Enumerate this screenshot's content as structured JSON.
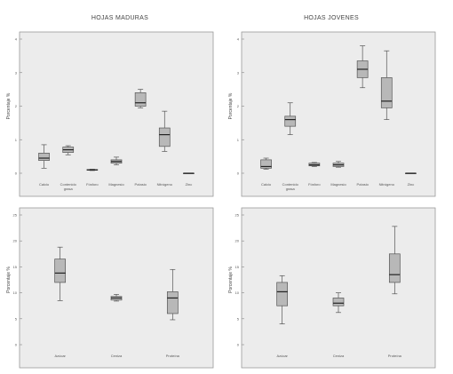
{
  "chart_data": [
    {
      "type": "boxplot",
      "title": "HOJAS MADURAS",
      "ylabel": "Porcentaje %",
      "ylim": [
        0,
        4
      ],
      "yticks": [
        0,
        1,
        2,
        3,
        4
      ],
      "color": "#b8b8b8",
      "categories": [
        "Calcio",
        "Contenido\ngrasa",
        "Fósforo",
        "Magnesio",
        "Potasio",
        "Nitrógeno",
        "Zinc"
      ],
      "boxes": [
        {
          "min": 0.15,
          "q1": 0.38,
          "median": 0.45,
          "q3": 0.6,
          "max": 0.85
        },
        {
          "min": 0.55,
          "q1": 0.62,
          "median": 0.7,
          "q3": 0.78,
          "max": 0.82
        },
        {
          "min": 0.08,
          "q1": 0.09,
          "median": 0.1,
          "q3": 0.11,
          "max": 0.12
        },
        {
          "min": 0.25,
          "q1": 0.3,
          "median": 0.35,
          "q3": 0.4,
          "max": 0.48
        },
        {
          "min": 1.95,
          "q1": 2.0,
          "median": 2.1,
          "q3": 2.4,
          "max": 2.5
        },
        {
          "min": 0.65,
          "q1": 0.8,
          "median": 1.15,
          "q3": 1.35,
          "max": 1.85
        },
        {
          "min": 0.0,
          "q1": 0.0,
          "median": 0.0,
          "q3": 0.0,
          "max": 0.0
        }
      ]
    },
    {
      "type": "boxplot",
      "title": "HOJAS JOVENES",
      "ylabel": "Porcentaje %",
      "ylim": [
        0,
        4
      ],
      "yticks": [
        0,
        1,
        2,
        3,
        4
      ],
      "color": "#b8b8b8",
      "categories": [
        "Calcio",
        "Contenido\ngrasa",
        "Fósforo",
        "Magnesio",
        "Potasio",
        "Nitrógeno",
        "Zinc"
      ],
      "boxes": [
        {
          "min": 0.12,
          "q1": 0.15,
          "median": 0.2,
          "q3": 0.4,
          "max": 0.45
        },
        {
          "min": 1.15,
          "q1": 1.4,
          "median": 1.6,
          "q3": 1.7,
          "max": 2.1
        },
        {
          "min": 0.2,
          "q1": 0.22,
          "median": 0.25,
          "q3": 0.3,
          "max": 0.32
        },
        {
          "min": 0.18,
          "q1": 0.2,
          "median": 0.25,
          "q3": 0.3,
          "max": 0.35
        },
        {
          "min": 2.55,
          "q1": 2.85,
          "median": 3.1,
          "q3": 3.35,
          "max": 3.8
        },
        {
          "min": 1.6,
          "q1": 1.95,
          "median": 2.15,
          "q3": 2.85,
          "max": 3.65
        },
        {
          "min": 0.0,
          "q1": 0.0,
          "median": 0.0,
          "q3": 0.0,
          "max": 0.0
        }
      ]
    },
    {
      "type": "boxplot",
      "title": "",
      "ylabel": "Porcentaje %",
      "ylim": [
        0,
        25
      ],
      "yticks": [
        0,
        5,
        10,
        15,
        20,
        25
      ],
      "color": "#b8b8b8",
      "categories": [
        "Azúcar",
        "Ceniza",
        "Proteína"
      ],
      "boxes": [
        {
          "min": 8.5,
          "q1": 12.0,
          "median": 13.8,
          "q3": 16.5,
          "max": 18.8
        },
        {
          "min": 8.4,
          "q1": 8.6,
          "median": 9.0,
          "q3": 9.3,
          "max": 9.7
        },
        {
          "min": 4.8,
          "q1": 6.0,
          "median": 9.0,
          "q3": 10.2,
          "max": 14.5
        }
      ]
    },
    {
      "type": "boxplot",
      "title": "",
      "ylabel": "Porcentaje %",
      "ylim": [
        0,
        25
      ],
      "yticks": [
        0,
        5,
        10,
        15,
        20,
        25
      ],
      "color": "#b8b8b8",
      "categories": [
        "Azúcar",
        "Ceniza",
        "Proteína"
      ],
      "boxes": [
        {
          "min": 4.0,
          "q1": 7.5,
          "median": 10.2,
          "q3": 12.0,
          "max": 13.3
        },
        {
          "min": 6.2,
          "q1": 7.5,
          "median": 8.0,
          "q3": 9.0,
          "max": 10.0
        },
        {
          "min": 9.8,
          "q1": 12.0,
          "median": 13.5,
          "q3": 17.5,
          "max": 22.8
        }
      ]
    }
  ]
}
